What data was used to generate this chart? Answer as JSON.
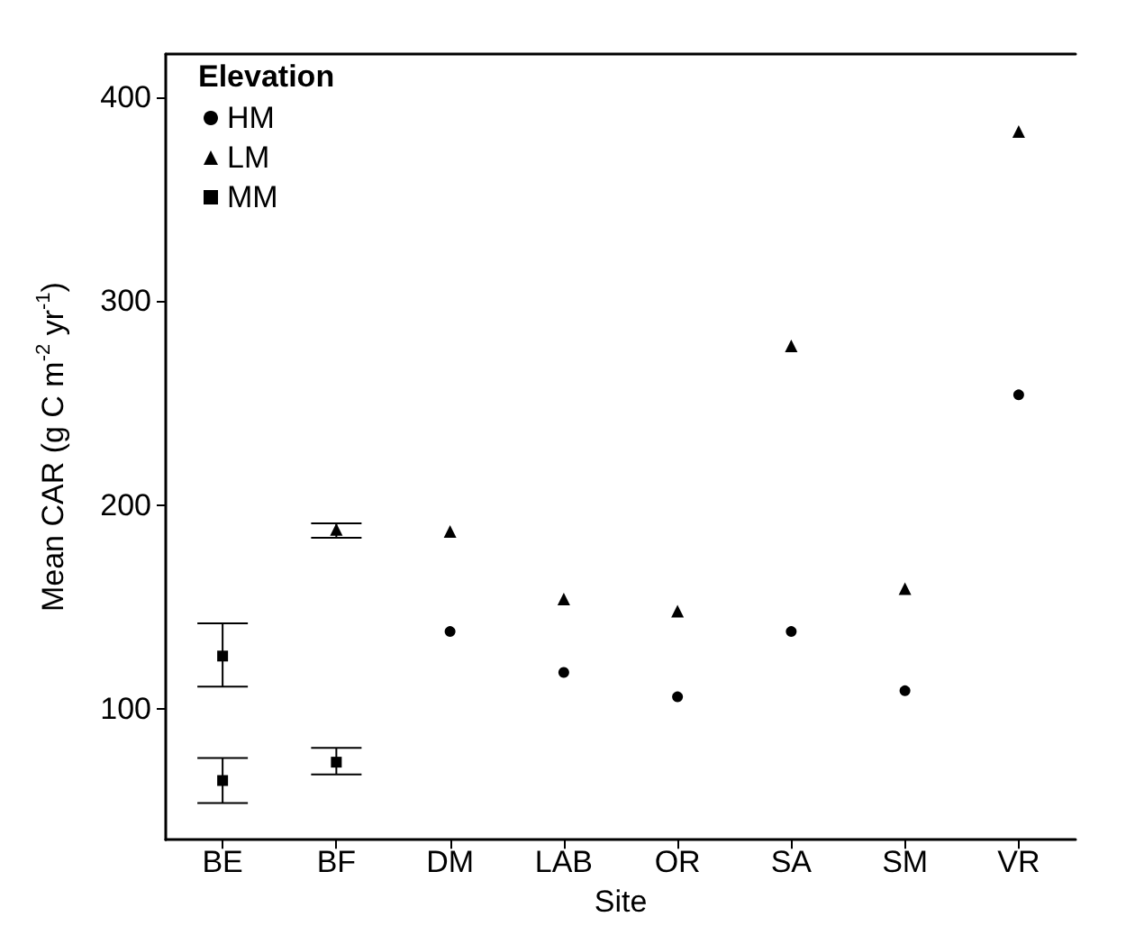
{
  "chart_data": {
    "type": "scatter",
    "xlabel": "Site",
    "ylabel": "Mean CAR (g C m$^{-2}$ yr$^{-1}$)",
    "legend_title": "Elevation",
    "categories": [
      "BE",
      "BF",
      "DM",
      "LAB",
      "OR",
      "SA",
      "SM",
      "VR"
    ],
    "ylim": [
      36,
      421
    ],
    "yticks": [
      100,
      200,
      300,
      400
    ],
    "grid": false,
    "legend": "top left",
    "series": [
      {
        "name": "HM",
        "color": "#000000",
        "marker": "circle",
        "x": [
          "DM",
          "LAB",
          "OR",
          "SA",
          "SM",
          "VR"
        ],
        "values": [
          138,
          118,
          106,
          138,
          109,
          254
        ]
      },
      {
        "name": "LM",
        "color": "#000000",
        "marker": "triangle",
        "x": [
          "BF",
          "DM",
          "LAB",
          "OR",
          "SA",
          "SM",
          "VR"
        ],
        "values": [
          188,
          187,
          154,
          148,
          278,
          159,
          383
        ],
        "errors": [
          [
            184,
            191
          ],
          null,
          null,
          null,
          null,
          null,
          null
        ]
      },
      {
        "name": "MM",
        "color": "#000000",
        "marker": "square",
        "x": [
          "BE",
          "BE",
          "BF"
        ],
        "values": [
          126,
          65,
          74
        ],
        "errors": [
          [
            111,
            142
          ],
          [
            54,
            76
          ],
          [
            68,
            81
          ]
        ]
      }
    ]
  }
}
